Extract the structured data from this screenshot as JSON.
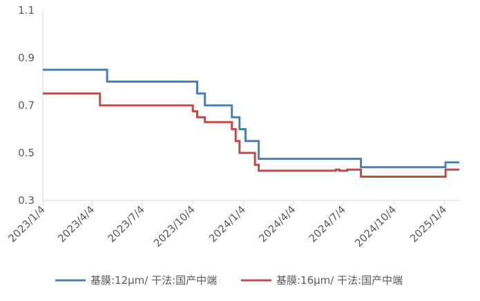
{
  "chart_data": {
    "type": "line",
    "step": true,
    "title": "",
    "xlabel": "",
    "ylabel": "",
    "ylim": [
      0.3,
      1.1
    ],
    "y_ticks": [
      "0.3",
      "0.5",
      "0.7",
      "0.9",
      "1.1"
    ],
    "y_tick_values": [
      0.3,
      0.5,
      0.7,
      0.9,
      1.1
    ],
    "x_ticks": [
      "2023/1/4",
      "2023/4/4",
      "2023/7/4",
      "2023/10/4",
      "2024/1/4",
      "2024/4/4",
      "2024/7/4",
      "2024/10/4",
      "2025/1/4"
    ],
    "xlim": [
      "2023/1/4",
      "2025/1/31"
    ],
    "grid": false,
    "legend_position": "bottom",
    "colors": {
      "series1": "#4a7ebb",
      "series2": "#be4b48",
      "axis": "#d9d9d9",
      "text": "#595959"
    },
    "series": [
      {
        "name": "基膜:12μm/ 干法:国产中端",
        "color": "#4a7ebb",
        "points": [
          [
            "2023/1/4",
            0.85
          ],
          [
            "2023/5/1",
            0.8
          ],
          [
            "2023/10/12",
            0.75
          ],
          [
            "2023/10/26",
            0.7
          ],
          [
            "2023/12/14",
            0.65
          ],
          [
            "2023/12/28",
            0.6
          ],
          [
            "2024/1/8",
            0.55
          ],
          [
            "2024/2/1",
            0.475
          ],
          [
            "2024/8/5",
            0.44
          ],
          [
            "2025/1/6",
            0.46
          ],
          [
            "2025/1/31",
            0.46
          ]
        ]
      },
      {
        "name": "基膜:16μm/ 干法:国产中端",
        "color": "#be4b48",
        "points": [
          [
            "2023/1/4",
            0.75
          ],
          [
            "2023/4/18",
            0.7
          ],
          [
            "2023/10/4",
            0.675
          ],
          [
            "2023/10/12",
            0.65
          ],
          [
            "2023/10/26",
            0.63
          ],
          [
            "2023/12/14",
            0.6
          ],
          [
            "2023/12/21",
            0.55
          ],
          [
            "2023/12/28",
            0.5
          ],
          [
            "2024/1/25",
            0.45
          ],
          [
            "2024/2/1",
            0.425
          ],
          [
            "2024/6/20",
            0.43
          ],
          [
            "2024/6/27",
            0.425
          ],
          [
            "2024/7/11",
            0.43
          ],
          [
            "2024/8/5",
            0.4
          ],
          [
            "2025/1/6",
            0.43
          ],
          [
            "2025/1/31",
            0.43
          ]
        ]
      }
    ]
  }
}
